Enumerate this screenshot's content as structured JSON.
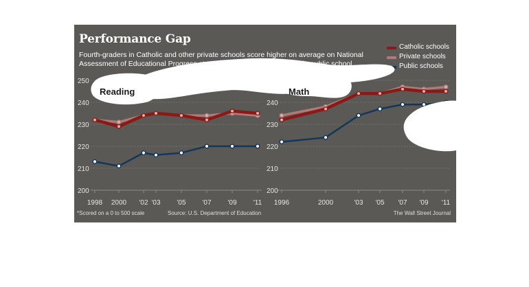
{
  "header": {
    "title": "Performance Gap",
    "subtitle": "Fourth-graders in Catholic and other private schools score higher on average on National Assessment of Educational Progress standardized tests  than children in public school."
  },
  "legend": [
    {
      "label": "Catholic schools",
      "color": "#8b1a17"
    },
    {
      "label": "Private schools",
      "color": "#b07a78"
    },
    {
      "label": "Public schools",
      "color": "#12375a"
    }
  ],
  "footer": {
    "note": "*Scored on a 0 to 500 scale",
    "source": "Source: U.S. Department of Education",
    "credit": "The Wall Street Journal"
  },
  "chart_data": [
    {
      "type": "line",
      "title": "Reading",
      "x_ticks": [
        "1998",
        "2000",
        "'02",
        "'03",
        "'05",
        "'07",
        "'09",
        "'11"
      ],
      "ylim": [
        200,
        250
      ],
      "y_ticks": [
        200,
        210,
        220,
        230,
        240,
        250
      ],
      "grid": true,
      "series": [
        {
          "name": "Catholic schools",
          "color": "#8b1a17",
          "values": [
            232,
            229,
            234,
            235,
            234,
            232,
            236,
            235
          ]
        },
        {
          "name": "Private schools",
          "color": "#b07a78",
          "values": [
            232,
            231,
            234,
            235,
            234,
            234,
            235,
            234
          ]
        },
        {
          "name": "Public schools",
          "color": "#12375a",
          "values": [
            213,
            211,
            217,
            216,
            217,
            220,
            220,
            220
          ]
        }
      ]
    },
    {
      "type": "line",
      "title": "Math",
      "x_ticks": [
        "1996",
        "2000",
        "'03",
        "'05",
        "'07",
        "'09",
        "'11"
      ],
      "ylim": [
        200,
        250
      ],
      "y_ticks": [
        200,
        210,
        220,
        230,
        240,
        250
      ],
      "grid": true,
      "series": [
        {
          "name": "Catholic schools",
          "color": "#8b1a17",
          "values": [
            232,
            237,
            244,
            244,
            246,
            245,
            245
          ]
        },
        {
          "name": "Private schools",
          "color": "#b07a78",
          "values": [
            234,
            238,
            244,
            244,
            247,
            246,
            247
          ]
        },
        {
          "name": "Public schools",
          "color": "#12375a",
          "values": [
            222,
            224,
            234,
            237,
            239,
            239,
            240
          ]
        }
      ]
    }
  ]
}
